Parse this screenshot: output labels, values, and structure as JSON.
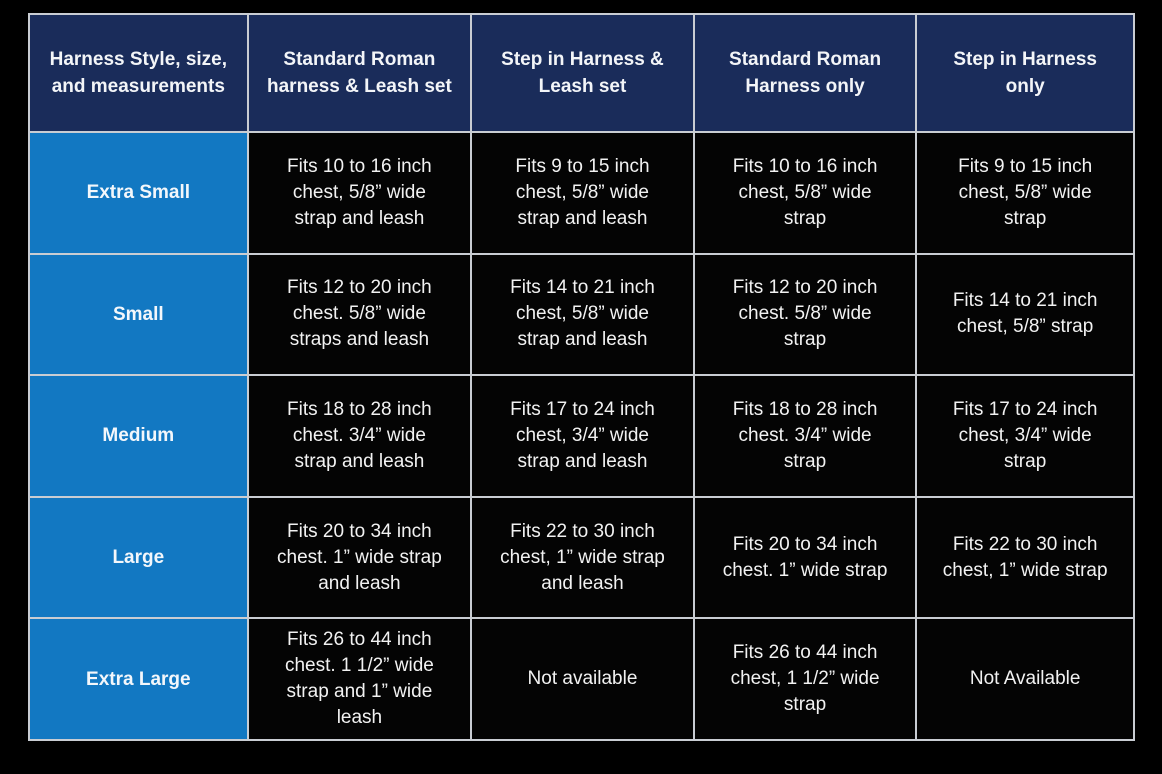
{
  "page": {
    "background_color": "#000000",
    "grid_line_color": "#c9cdd3",
    "header_bg_color": "#1a2c5a",
    "row_label_bg_color": "#1278c2",
    "data_cell_bg_color": "#000000",
    "text_color": "#ffffff"
  },
  "table": {
    "columns": [
      {
        "label": "Harness Style, size,\nand measurements"
      },
      {
        "label": "Standard Roman\nharness & Leash set"
      },
      {
        "label": "Step in Harness &\nLeash set"
      },
      {
        "label": "Standard Roman\nHarness only"
      },
      {
        "label": "Step in Harness\nonly"
      }
    ],
    "rows": [
      {
        "size": "Extra Small",
        "cells": [
          "Fits 10 to 16 inch\nchest, 5/8” wide\nstrap and leash",
          "Fits 9 to 15 inch\nchest, 5/8” wide\nstrap and leash",
          "Fits 10 to 16 inch\nchest, 5/8” wide\nstrap",
          "Fits 9 to 15 inch\nchest, 5/8” wide\nstrap"
        ]
      },
      {
        "size": "Small",
        "cells": [
          "Fits 12 to 20 inch\nchest. 5/8” wide\nstraps and leash",
          "Fits 14 to 21 inch\nchest, 5/8” wide\nstrap and leash",
          "Fits 12 to 20 inch\nchest. 5/8” wide\nstrap",
          "Fits 14 to 21 inch\nchest, 5/8” strap"
        ]
      },
      {
        "size": "Medium",
        "cells": [
          "Fits 18 to 28 inch\nchest. 3/4” wide\nstrap and leash",
          "Fits 17 to 24 inch\nchest, 3/4” wide\nstrap and leash",
          "Fits 18 to 28 inch\nchest. 3/4” wide\nstrap",
          "Fits 17 to 24 inch\nchest, 3/4” wide\nstrap"
        ]
      },
      {
        "size": "Large",
        "cells": [
          "Fits 20 to 34 inch\nchest. 1” wide strap\nand leash",
          "Fits 22 to 30 inch\nchest, 1” wide strap\nand leash",
          "Fits 20 to 34 inch\nchest. 1” wide strap",
          "Fits 22 to 30 inch\nchest, 1” wide strap"
        ]
      },
      {
        "size": "Extra Large",
        "cells": [
          "Fits 26 to 44 inch\nchest. 1 1/2” wide\nstrap and 1” wide\nleash",
          "Not available",
          "Fits 26 to 44 inch\nchest, 1 1/2” wide\nstrap",
          "Not Available"
        ]
      }
    ]
  },
  "chart_data": {
    "type": "table",
    "title": "Harness Style, size, and measurements",
    "columns": [
      "Harness Style, size, and measurements",
      "Standard Roman harness & Leash set",
      "Step in Harness & Leash set",
      "Standard Roman Harness only",
      "Step in Harness only"
    ],
    "rows": [
      [
        "Extra Small",
        "Fits 10 to 16 inch chest, 5/8” wide strap and leash",
        "Fits 9 to 15 inch chest, 5/8” wide strap and leash",
        "Fits 10 to 16 inch chest, 5/8” wide strap",
        "Fits 9 to 15 inch chest, 5/8” wide strap"
      ],
      [
        "Small",
        "Fits 12 to 20 inch chest. 5/8” wide straps and leash",
        "Fits 14 to 21 inch chest, 5/8” wide strap and leash",
        "Fits 12 to 20 inch chest. 5/8” wide strap",
        "Fits 14 to 21 inch chest, 5/8” strap"
      ],
      [
        "Medium",
        "Fits 18 to 28 inch chest. 3/4” wide strap and leash",
        "Fits 17 to 24 inch chest, 3/4” wide strap and leash",
        "Fits 18 to 28 inch chest. 3/4” wide strap",
        "Fits 17 to 24 inch chest, 3/4” wide strap"
      ],
      [
        "Large",
        "Fits 20 to 34 inch chest. 1” wide strap and leash",
        "Fits 22 to 30 inch chest, 1” wide strap and leash",
        "Fits 20 to 34 inch chest. 1” wide strap",
        "Fits 22 to 30 inch chest, 1” wide strap"
      ],
      [
        "Extra Large",
        "Fits 26 to 44 inch chest. 1 1/2” wide strap and 1” wide leash",
        "Not available",
        "Fits 26 to 44 inch chest, 1 1/2” wide strap",
        "Not Available"
      ]
    ]
  }
}
